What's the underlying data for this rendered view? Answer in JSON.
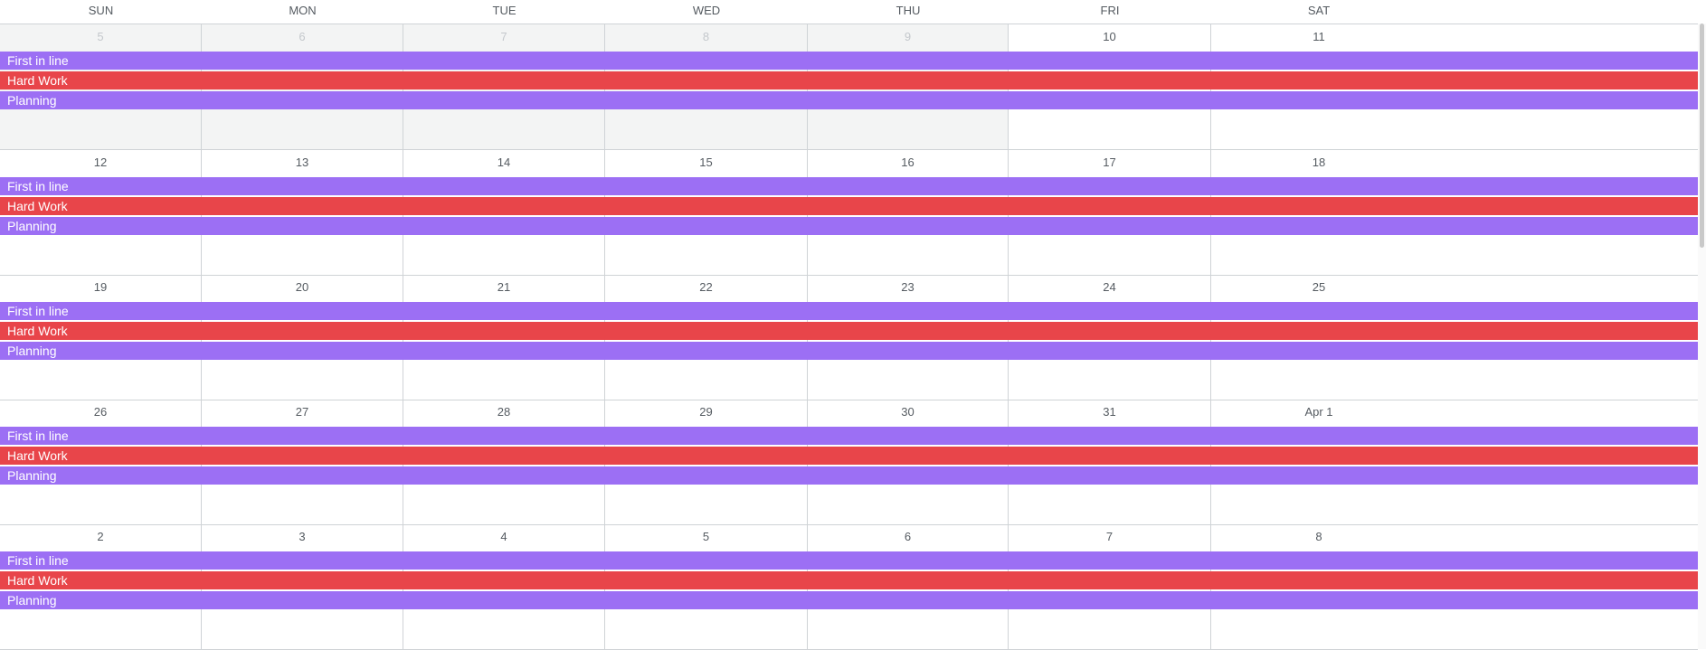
{
  "colors": {
    "purple": "#9c6ff4",
    "red": "#e8454a"
  },
  "weekdays": [
    "SUN",
    "MON",
    "TUE",
    "WED",
    "THU",
    "FRI",
    "SAT"
  ],
  "weeks": [
    {
      "days": [
        {
          "label": "5",
          "other_month": true
        },
        {
          "label": "6",
          "other_month": true
        },
        {
          "label": "7",
          "other_month": true
        },
        {
          "label": "8",
          "other_month": true
        },
        {
          "label": "9",
          "other_month": true
        },
        {
          "label": "10",
          "other_month": false
        },
        {
          "label": "11",
          "other_month": false
        }
      ]
    },
    {
      "days": [
        {
          "label": "12",
          "other_month": false
        },
        {
          "label": "13",
          "other_month": false
        },
        {
          "label": "14",
          "other_month": false
        },
        {
          "label": "15",
          "other_month": false
        },
        {
          "label": "16",
          "other_month": false
        },
        {
          "label": "17",
          "other_month": false
        },
        {
          "label": "18",
          "other_month": false
        }
      ]
    },
    {
      "days": [
        {
          "label": "19",
          "other_month": false
        },
        {
          "label": "20",
          "other_month": false
        },
        {
          "label": "21",
          "other_month": false
        },
        {
          "label": "22",
          "other_month": false
        },
        {
          "label": "23",
          "other_month": false
        },
        {
          "label": "24",
          "other_month": false
        },
        {
          "label": "25",
          "other_month": false
        }
      ]
    },
    {
      "days": [
        {
          "label": "26",
          "other_month": false
        },
        {
          "label": "27",
          "other_month": false
        },
        {
          "label": "28",
          "other_month": false
        },
        {
          "label": "29",
          "other_month": false
        },
        {
          "label": "30",
          "other_month": false
        },
        {
          "label": "31",
          "other_month": false
        },
        {
          "label": "Apr 1",
          "other_month": false
        }
      ]
    },
    {
      "days": [
        {
          "label": "2",
          "other_month": false
        },
        {
          "label": "3",
          "other_month": false
        },
        {
          "label": "4",
          "other_month": false
        },
        {
          "label": "5",
          "other_month": false
        },
        {
          "label": "6",
          "other_month": false
        },
        {
          "label": "7",
          "other_month": false
        },
        {
          "label": "8",
          "other_month": false
        }
      ]
    }
  ],
  "events": [
    {
      "title": "First in line",
      "color": "#9c6ff4"
    },
    {
      "title": "Hard Work",
      "color": "#e8454a"
    },
    {
      "title": "Planning",
      "color": "#9c6ff4"
    }
  ]
}
